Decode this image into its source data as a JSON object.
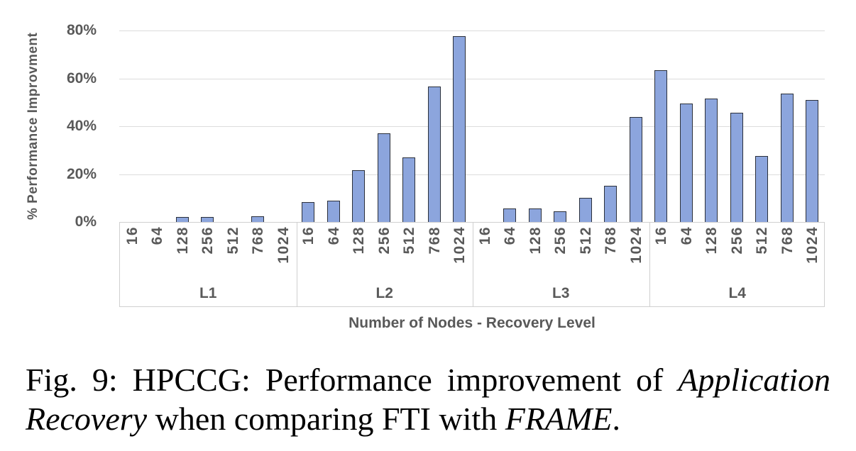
{
  "chart_data": {
    "type": "bar",
    "title": "",
    "ylabel": "% Performance Improvment",
    "xlabel": "Number of Nodes - Recovery Level",
    "ylim": [
      0,
      80
    ],
    "grid": true,
    "legend": "none",
    "y_ticks": {
      "labels": [
        "80%",
        "60%",
        "40%",
        "20%",
        "0%"
      ],
      "values": [
        80,
        60,
        40,
        20,
        0
      ]
    },
    "categories": [
      "16",
      "64",
      "128",
      "256",
      "512",
      "768",
      "1024"
    ],
    "group_axis_note": "two-level category axis: node counts nested under recovery levels",
    "series": [
      {
        "name": "L1",
        "values": [
          0,
          0,
          2.2,
          2.0,
          0,
          2.3,
          0
        ]
      },
      {
        "name": "L2",
        "values": [
          8.3,
          8.8,
          21.5,
          37,
          27,
          56.5,
          77.5
        ]
      },
      {
        "name": "L3",
        "values": [
          0,
          5.5,
          5.5,
          4.5,
          10,
          15,
          44
        ]
      },
      {
        "name": "L4",
        "values": [
          63.5,
          49.5,
          51.5,
          45.5,
          27.5,
          53.5,
          51
        ]
      }
    ],
    "colors": {
      "bar_fill": "#8CA5DD",
      "bar_border": "#2B303B",
      "gridline": "#DCDCDC",
      "band_border": "#CFCFCF",
      "label_text": "#595959"
    }
  },
  "caption": {
    "line1_roman": "Fig. 9: HPCCG: Performance improvement of ",
    "line1_italic": "Application",
    "line2_italic_1": "Recovery",
    "line2_roman": " when comparing FTI with ",
    "line2_italic_2": "FRAME",
    "line2_end": "."
  }
}
